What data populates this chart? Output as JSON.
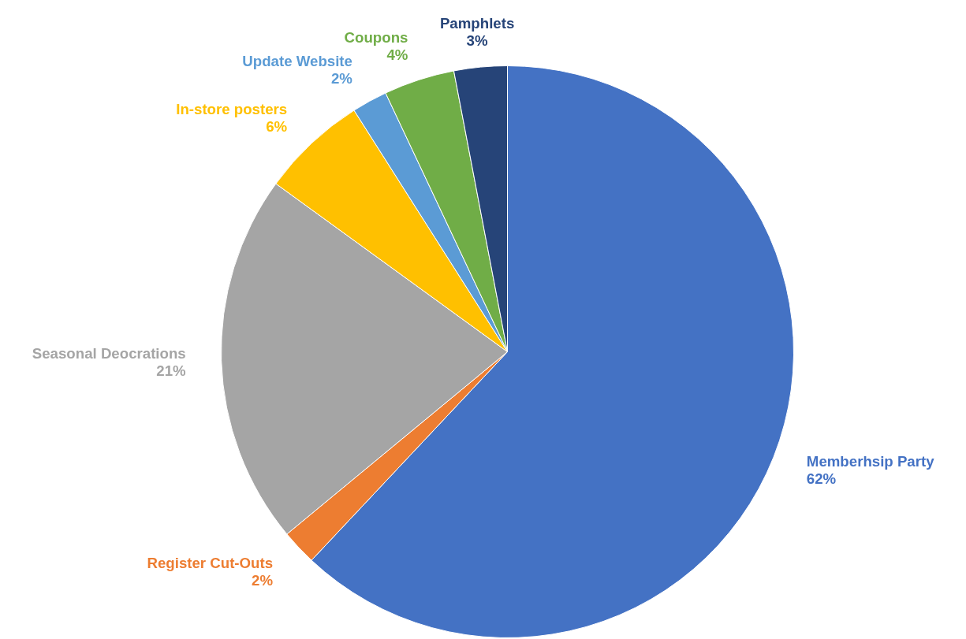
{
  "chart_data": {
    "type": "pie",
    "categories": [
      "Memberhsip Party",
      "Register Cut-Outs",
      "Seasonal Deocrations",
      "In-store posters",
      "Update Website",
      "Coupons",
      "Pamphlets"
    ],
    "values": [
      62,
      2,
      21,
      6,
      2,
      4,
      3
    ],
    "value_labels": [
      "62%",
      "2%",
      "21%",
      "6%",
      "2%",
      "4%",
      "3%"
    ],
    "colors": [
      "#4472c4",
      "#ed7d31",
      "#a5a5a5",
      "#ffc000",
      "#5b9bd5",
      "#70ad47",
      "#264478"
    ]
  }
}
